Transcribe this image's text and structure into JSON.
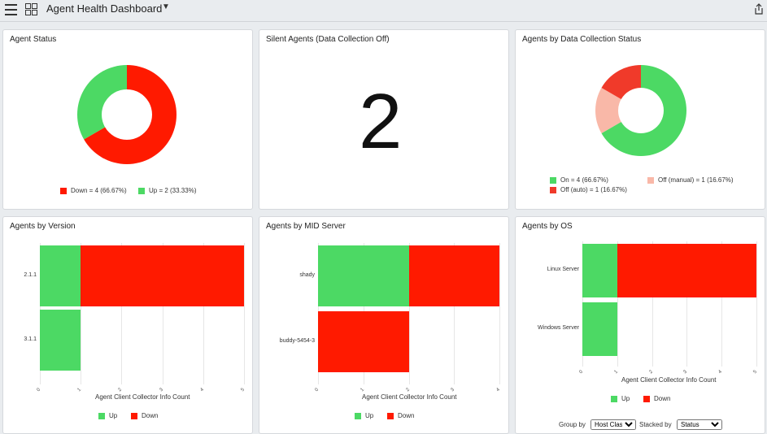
{
  "header": {
    "title": "Agent Health Dashboard"
  },
  "colors": {
    "up": "#4cd964",
    "down": "#ff1a00",
    "off_manual": "#f9b8a8",
    "off_auto": "#f03a2a"
  },
  "agent_status": {
    "title": "Agent Status",
    "legend": [
      "Down = 4 (66.67%)",
      "Up = 2 (33.33%)"
    ],
    "chart_data": {
      "type": "pie",
      "donut": true,
      "slices": [
        {
          "label": "Down",
          "value": 4,
          "percent": 66.67
        },
        {
          "label": "Up",
          "value": 2,
          "percent": 33.33
        }
      ]
    }
  },
  "silent_agents": {
    "title": "Silent Agents (Data Collection Off)",
    "value": "2"
  },
  "collection_status": {
    "title": "Agents by Data Collection Status",
    "legend": [
      "On = 4 (66.67%)",
      "Off (manual) = 1 (16.67%)",
      "Off (auto) = 1 (16.67%)"
    ],
    "chart_data": {
      "type": "pie",
      "donut": true,
      "slices": [
        {
          "label": "On",
          "value": 4,
          "percent": 66.67
        },
        {
          "label": "Off (manual)",
          "value": 1,
          "percent": 16.67
        },
        {
          "label": "Off (auto)",
          "value": 1,
          "percent": 16.67
        }
      ]
    }
  },
  "by_version": {
    "title": "Agents by Version",
    "xlabel": "Agent Client Collector Info Count",
    "legend": [
      "Up",
      "Down"
    ],
    "chart_data": {
      "type": "bar",
      "orientation": "horizontal",
      "stacked": true,
      "categories": [
        "2.1.1",
        "3.1.1"
      ],
      "series": [
        {
          "name": "Up",
          "values": [
            1,
            1
          ]
        },
        {
          "name": "Down",
          "values": [
            4,
            0
          ]
        }
      ],
      "xlim": [
        0,
        5
      ],
      "xticks": [
        "0",
        "1",
        "2",
        "3",
        "4",
        "5"
      ]
    }
  },
  "by_mid": {
    "title": "Agents by MID Server",
    "xlabel": "Agent Client Collector Info Count",
    "legend": [
      "Up",
      "Down"
    ],
    "chart_data": {
      "type": "bar",
      "orientation": "horizontal",
      "stacked": true,
      "categories": [
        "shady",
        "buddy-5454-3"
      ],
      "series": [
        {
          "name": "Up",
          "values": [
            2,
            0
          ]
        },
        {
          "name": "Down",
          "values": [
            2,
            2
          ]
        }
      ],
      "xlim": [
        0,
        4
      ],
      "xticks": [
        "0",
        "1",
        "2",
        "3",
        "4"
      ]
    }
  },
  "by_os": {
    "title": "Agents by OS",
    "xlabel": "Agent Client Collector Info Count",
    "legend": [
      "Up",
      "Down"
    ],
    "chart_data": {
      "type": "bar",
      "orientation": "horizontal",
      "stacked": true,
      "categories": [
        "Linux Server",
        "Windows Server"
      ],
      "series": [
        {
          "name": "Up",
          "values": [
            1,
            1
          ]
        },
        {
          "name": "Down",
          "values": [
            4,
            0
          ]
        }
      ],
      "xlim": [
        0,
        5
      ],
      "xticks": [
        "0",
        "1",
        "2",
        "3",
        "4",
        "5"
      ]
    },
    "controls": {
      "group_by_label": "Group by",
      "group_by_value": "Host Class",
      "stacked_by_label": "Stacked by",
      "stacked_by_value": "Status"
    }
  }
}
